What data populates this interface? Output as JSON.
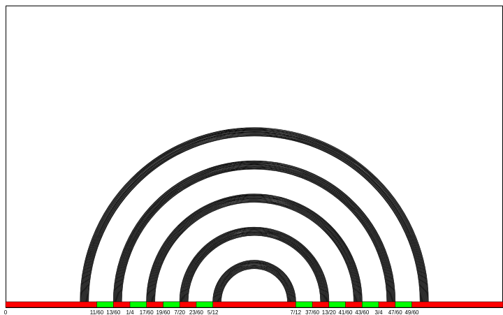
{
  "diagram": {
    "domain_min": 0,
    "domain_max": 1,
    "interval_colors": {
      "gap": "#ff0000",
      "shaded": "#00ff00",
      "line": "#000000"
    },
    "shaded_intervals": [
      [
        0.1833,
        0.2167
      ],
      [
        0.25,
        0.2833
      ],
      [
        0.3167,
        0.35
      ],
      [
        0.3833,
        0.4167
      ],
      [
        0.5833,
        0.6167
      ],
      [
        0.65,
        0.6833
      ],
      [
        0.7167,
        0.75
      ],
      [
        0.7833,
        0.8167
      ]
    ],
    "labels": [
      {
        "value": 0,
        "text": "0"
      },
      {
        "value": 0.1833,
        "text": "11/60"
      },
      {
        "value": 0.2167,
        "text": "13/60"
      },
      {
        "value": 0.25,
        "text": "1/4"
      },
      {
        "value": 0.2833,
        "text": "17/60"
      },
      {
        "value": 0.3167,
        "text": "19/60"
      },
      {
        "value": 0.35,
        "text": "7/20"
      },
      {
        "value": 0.3833,
        "text": "23/60"
      },
      {
        "value": 0.4167,
        "text": "5/12"
      },
      {
        "value": 0.5833,
        "text": "7/12"
      },
      {
        "value": 0.6167,
        "text": "37/60"
      },
      {
        "value": 0.65,
        "text": "13/20"
      },
      {
        "value": 0.6833,
        "text": "41/60"
      },
      {
        "value": 0.7167,
        "text": "43/60"
      },
      {
        "value": 0.75,
        "text": "3/4"
      },
      {
        "value": 0.7833,
        "text": "47/60"
      },
      {
        "value": 0.8167,
        "text": "49/60"
      }
    ],
    "arc_families": [
      {
        "center": 0.5,
        "inner_radius": 0.0667,
        "outer_radius": 0.0833,
        "count": 14
      },
      {
        "center": 0.5,
        "inner_radius": 0.1333,
        "outer_radius": 0.15,
        "count": 14
      },
      {
        "center": 0.5,
        "inner_radius": 0.2,
        "outer_radius": 0.2167,
        "count": 14
      },
      {
        "center": 0.5,
        "inner_radius": 0.2667,
        "outer_radius": 0.2833,
        "count": 14
      },
      {
        "center": 0.5,
        "inner_radius": 0.3333,
        "outer_radius": 0.35,
        "count": 14
      }
    ]
  }
}
